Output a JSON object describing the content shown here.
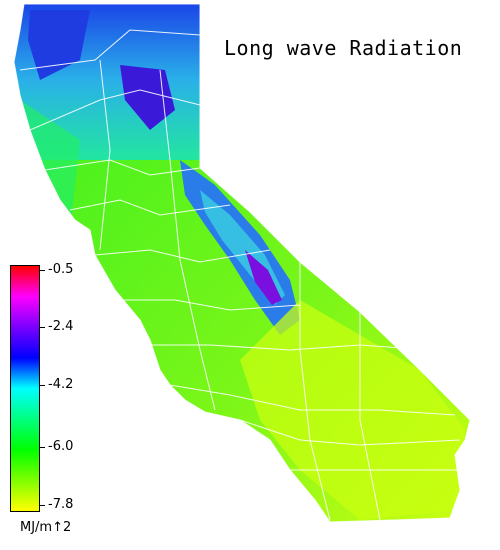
{
  "title": "Long wave Radiation",
  "legend": {
    "ticks": [
      "-0.5",
      "-2.4",
      "-4.2",
      "-6.0",
      "-7.8"
    ],
    "units": "MJ/m↑2",
    "colors": [
      "#ff0000",
      "#ff00ff",
      "#7a00ff",
      "#0000ff",
      "#00ffff",
      "#00ff7f",
      "#00ff00",
      "#7fff00",
      "#ffff00"
    ]
  },
  "map_colors": {
    "high_elevation": "#1a2bd8",
    "mountain": "#3ad0e0",
    "cool": "#22ee88",
    "mid": "#33ee22",
    "desert": "#c8ff10",
    "peaks": "#7a10e0",
    "boundary": "#ffffff"
  }
}
